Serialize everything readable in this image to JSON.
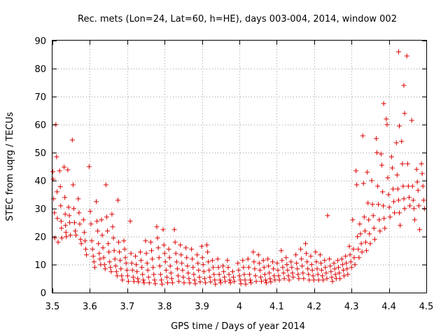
{
  "chart_data": {
    "type": "scatter",
    "title": "Rec. mets (Lon=24, Lat=60, h=HE), days 003-004, 2014, window 002",
    "xlabel": "GPS time / Days of year 2014",
    "ylabel": "STEC from uqrg / TECUs",
    "xlim": [
      3.5,
      4.5
    ],
    "ylim": [
      0,
      90
    ],
    "x_ticks": [
      3.5,
      3.6,
      3.7,
      3.8,
      3.9,
      4.0,
      4.1,
      4.2,
      4.3,
      4.4,
      4.5
    ],
    "x_tick_labels": [
      "3.5",
      "3.6",
      "3.7",
      "3.8",
      "3.9",
      "4",
      "4.1",
      "4.2",
      "4.3",
      "4.4",
      "4.5"
    ],
    "y_ticks": [
      0,
      10,
      20,
      30,
      40,
      50,
      60,
      70,
      80,
      90
    ],
    "y_tick_labels": [
      "0",
      "10",
      "20",
      "30",
      "40",
      "50",
      "60",
      "70",
      "80",
      "90"
    ],
    "grid": true,
    "marker": "plus",
    "marker_color": "#dd0000",
    "points": [
      [
        3.501,
        43.2
      ],
      [
        3.502,
        40.5
      ],
      [
        3.503,
        33.5
      ],
      [
        3.505,
        28.5
      ],
      [
        3.506,
        19.5
      ],
      [
        3.509,
        60.0
      ],
      [
        3.511,
        48.5
      ],
      [
        3.512,
        36.0
      ],
      [
        3.513,
        26.5
      ],
      [
        3.515,
        18.0
      ],
      [
        3.519,
        43.5
      ],
      [
        3.521,
        37.8
      ],
      [
        3.522,
        31.0
      ],
      [
        3.523,
        25.5
      ],
      [
        3.524,
        23.0
      ],
      [
        3.525,
        19.5
      ],
      [
        3.531,
        44.8
      ],
      [
        3.533,
        34.0
      ],
      [
        3.534,
        28.0
      ],
      [
        3.535,
        24.0
      ],
      [
        3.536,
        21.5
      ],
      [
        3.537,
        20.0
      ],
      [
        3.541,
        43.8
      ],
      [
        3.543,
        30.5
      ],
      [
        3.545,
        27.5
      ],
      [
        3.546,
        25.0
      ],
      [
        3.548,
        20.5
      ],
      [
        3.553,
        54.5
      ],
      [
        3.555,
        38.5
      ],
      [
        3.557,
        30.0
      ],
      [
        3.559,
        25.0
      ],
      [
        3.561,
        22.0
      ],
      [
        3.563,
        20.5
      ],
      [
        3.569,
        33.5
      ],
      [
        3.571,
        28.5
      ],
      [
        3.573,
        24.5
      ],
      [
        3.575,
        19.0
      ],
      [
        3.577,
        17.5
      ],
      [
        3.583,
        26.0
      ],
      [
        3.585,
        21.5
      ],
      [
        3.587,
        18.5
      ],
      [
        3.589,
        15.5
      ],
      [
        3.591,
        13.5
      ],
      [
        3.598,
        45.0
      ],
      [
        3.601,
        29.0
      ],
      [
        3.603,
        24.5
      ],
      [
        3.605,
        18.5
      ],
      [
        3.607,
        15.5
      ],
      [
        3.609,
        13.0
      ],
      [
        3.611,
        11.0
      ],
      [
        3.613,
        9.0
      ],
      [
        3.617,
        32.5
      ],
      [
        3.619,
        25.5
      ],
      [
        3.621,
        22.0
      ],
      [
        3.623,
        17.5
      ],
      [
        3.625,
        14.0
      ],
      [
        3.627,
        12.0
      ],
      [
        3.629,
        10.0
      ],
      [
        3.631,
        26.0
      ],
      [
        3.633,
        20.5
      ],
      [
        3.635,
        16.0
      ],
      [
        3.637,
        12.5
      ],
      [
        3.639,
        10.0
      ],
      [
        3.641,
        8.5
      ],
      [
        3.643,
        38.5
      ],
      [
        3.645,
        27.0
      ],
      [
        3.647,
        22.0
      ],
      [
        3.649,
        17.5
      ],
      [
        3.651,
        14.5
      ],
      [
        3.653,
        11.0
      ],
      [
        3.655,
        9.0
      ],
      [
        3.657,
        7.5
      ],
      [
        3.659,
        28.0
      ],
      [
        3.661,
        23.5
      ],
      [
        3.663,
        19.5
      ],
      [
        3.665,
        15.0
      ],
      [
        3.667,
        12.0
      ],
      [
        3.669,
        9.5
      ],
      [
        3.671,
        7.5
      ],
      [
        3.673,
        6.0
      ],
      [
        3.675,
        33.0
      ],
      [
        3.677,
        18.0
      ],
      [
        3.679,
        14.5
      ],
      [
        3.681,
        11.5
      ],
      [
        3.683,
        8.5
      ],
      [
        3.685,
        6.0
      ],
      [
        3.687,
        4.5
      ],
      [
        3.691,
        18.5
      ],
      [
        3.693,
        15.5
      ],
      [
        3.695,
        12.5
      ],
      [
        3.697,
        10.5
      ],
      [
        3.699,
        8.0
      ],
      [
        3.701,
        6.0
      ],
      [
        3.703,
        4.0
      ],
      [
        3.708,
        25.5
      ],
      [
        3.71,
        14.0
      ],
      [
        3.712,
        10.5
      ],
      [
        3.714,
        8.0
      ],
      [
        3.716,
        5.5
      ],
      [
        3.718,
        4.0
      ],
      [
        3.722,
        13.0
      ],
      [
        3.724,
        10.0
      ],
      [
        3.726,
        7.5
      ],
      [
        3.728,
        5.0
      ],
      [
        3.73,
        3.8
      ],
      [
        3.735,
        14.5
      ],
      [
        3.737,
        11.5
      ],
      [
        3.739,
        9.0
      ],
      [
        3.741,
        6.5
      ],
      [
        3.743,
        4.5
      ],
      [
        3.745,
        3.5
      ],
      [
        3.749,
        18.5
      ],
      [
        3.751,
        14.0
      ],
      [
        3.753,
        10.5
      ],
      [
        3.755,
        8.0
      ],
      [
        3.757,
        5.5
      ],
      [
        3.759,
        3.5
      ],
      [
        3.763,
        18.0
      ],
      [
        3.765,
        15.0
      ],
      [
        3.767,
        12.0
      ],
      [
        3.769,
        9.0
      ],
      [
        3.771,
        6.5
      ],
      [
        3.773,
        4.5
      ],
      [
        3.775,
        3.2
      ],
      [
        3.779,
        23.5
      ],
      [
        3.781,
        19.5
      ],
      [
        3.783,
        16.0
      ],
      [
        3.785,
        12.5
      ],
      [
        3.787,
        9.5
      ],
      [
        3.789,
        6.5
      ],
      [
        3.791,
        4.5
      ],
      [
        3.793,
        3.0
      ],
      [
        3.796,
        22.5
      ],
      [
        3.798,
        17.0
      ],
      [
        3.8,
        14.0
      ],
      [
        3.802,
        11.0
      ],
      [
        3.804,
        8.0
      ],
      [
        3.806,
        5.5
      ],
      [
        3.808,
        3.5
      ],
      [
        3.811,
        15.5
      ],
      [
        3.813,
        12.5
      ],
      [
        3.815,
        9.5
      ],
      [
        3.817,
        7.0
      ],
      [
        3.819,
        5.0
      ],
      [
        3.821,
        3.5
      ],
      [
        3.826,
        22.5
      ],
      [
        3.828,
        18.0
      ],
      [
        3.83,
        14.0
      ],
      [
        3.832,
        11.0
      ],
      [
        3.834,
        8.5
      ],
      [
        3.836,
        6.0
      ],
      [
        3.838,
        4.0
      ],
      [
        3.842,
        17.0
      ],
      [
        3.844,
        13.5
      ],
      [
        3.846,
        10.5
      ],
      [
        3.848,
        8.0
      ],
      [
        3.85,
        5.5
      ],
      [
        3.852,
        3.5
      ],
      [
        3.857,
        16.0
      ],
      [
        3.859,
        12.5
      ],
      [
        3.861,
        9.5
      ],
      [
        3.863,
        7.0
      ],
      [
        3.865,
        5.0
      ],
      [
        3.867,
        3.5
      ],
      [
        3.872,
        15.5
      ],
      [
        3.874,
        12.0
      ],
      [
        3.876,
        9.0
      ],
      [
        3.878,
        6.5
      ],
      [
        3.88,
        4.5
      ],
      [
        3.882,
        3.2
      ],
      [
        3.887,
        13.5
      ],
      [
        3.889,
        10.5
      ],
      [
        3.891,
        8.0
      ],
      [
        3.893,
        5.5
      ],
      [
        3.895,
        3.8
      ],
      [
        3.899,
        16.5
      ],
      [
        3.901,
        12.5
      ],
      [
        3.903,
        10.0
      ],
      [
        3.905,
        7.5
      ],
      [
        3.907,
        5.0
      ],
      [
        3.909,
        3.5
      ],
      [
        3.913,
        17.0
      ],
      [
        3.915,
        14.5
      ],
      [
        3.917,
        11.0
      ],
      [
        3.919,
        8.0
      ],
      [
        3.921,
        5.5
      ],
      [
        3.923,
        3.8
      ],
      [
        3.928,
        11.5
      ],
      [
        3.93,
        9.0
      ],
      [
        3.932,
        6.5
      ],
      [
        3.934,
        4.5
      ],
      [
        3.936,
        3.0
      ],
      [
        3.942,
        12.0
      ],
      [
        3.944,
        9.0
      ],
      [
        3.946,
        6.5
      ],
      [
        3.948,
        4.5
      ],
      [
        3.95,
        3.5
      ],
      [
        3.956,
        9.5
      ],
      [
        3.958,
        7.5
      ],
      [
        3.96,
        5.5
      ],
      [
        3.962,
        4.0
      ],
      [
        3.968,
        11.5
      ],
      [
        3.97,
        9.0
      ],
      [
        3.972,
        6.5
      ],
      [
        3.974,
        4.5
      ],
      [
        3.976,
        3.5
      ],
      [
        3.982,
        7.5
      ],
      [
        3.984,
        5.5
      ],
      [
        3.986,
        4.0
      ],
      [
        3.996,
        10.5
      ],
      [
        3.998,
        8.0
      ],
      [
        4.0,
        6.0
      ],
      [
        4.002,
        4.5
      ],
      [
        4.004,
        3.2
      ],
      [
        4.009,
        11.5
      ],
      [
        4.011,
        9.0
      ],
      [
        4.013,
        6.5
      ],
      [
        4.015,
        4.5
      ],
      [
        4.017,
        3.0
      ],
      [
        4.023,
        12.0
      ],
      [
        4.025,
        9.0
      ],
      [
        4.027,
        6.5
      ],
      [
        4.029,
        4.5
      ],
      [
        4.031,
        3.5
      ],
      [
        4.037,
        14.5
      ],
      [
        4.039,
        11.0
      ],
      [
        4.041,
        8.5
      ],
      [
        4.043,
        6.0
      ],
      [
        4.045,
        4.0
      ],
      [
        4.051,
        13.5
      ],
      [
        4.053,
        10.5
      ],
      [
        4.055,
        8.0
      ],
      [
        4.057,
        5.5
      ],
      [
        4.059,
        4.0
      ],
      [
        4.064,
        11.5
      ],
      [
        4.066,
        9.0
      ],
      [
        4.068,
        6.5
      ],
      [
        4.07,
        4.5
      ],
      [
        4.072,
        3.5
      ],
      [
        4.076,
        12.0
      ],
      [
        4.078,
        9.5
      ],
      [
        4.08,
        7.0
      ],
      [
        4.082,
        5.0
      ],
      [
        4.084,
        3.8
      ],
      [
        4.089,
        11.0
      ],
      [
        4.091,
        8.5
      ],
      [
        4.093,
        6.0
      ],
      [
        4.095,
        4.5
      ],
      [
        4.101,
        10.5
      ],
      [
        4.103,
        8.0
      ],
      [
        4.105,
        6.0
      ],
      [
        4.107,
        4.5
      ],
      [
        4.112,
        15.0
      ],
      [
        4.114,
        11.5
      ],
      [
        4.116,
        9.0
      ],
      [
        4.118,
        7.0
      ],
      [
        4.12,
        5.0
      ],
      [
        4.125,
        12.5
      ],
      [
        4.127,
        10.0
      ],
      [
        4.129,
        8.0
      ],
      [
        4.131,
        6.0
      ],
      [
        4.133,
        4.5
      ],
      [
        4.138,
        11.0
      ],
      [
        4.14,
        9.0
      ],
      [
        4.142,
        7.0
      ],
      [
        4.144,
        5.5
      ],
      [
        4.151,
        13.5
      ],
      [
        4.153,
        10.5
      ],
      [
        4.155,
        8.5
      ],
      [
        4.157,
        6.5
      ],
      [
        4.159,
        5.0
      ],
      [
        4.164,
        15.5
      ],
      [
        4.166,
        12.0
      ],
      [
        4.168,
        9.5
      ],
      [
        4.17,
        7.0
      ],
      [
        4.172,
        5.0
      ],
      [
        4.177,
        17.5
      ],
      [
        4.179,
        14.0
      ],
      [
        4.181,
        11.0
      ],
      [
        4.183,
        8.5
      ],
      [
        4.185,
        6.5
      ],
      [
        4.187,
        4.5
      ],
      [
        4.191,
        13.0
      ],
      [
        4.193,
        10.0
      ],
      [
        4.195,
        8.0
      ],
      [
        4.197,
        6.0
      ],
      [
        4.199,
        4.5
      ],
      [
        4.204,
        14.5
      ],
      [
        4.206,
        11.0
      ],
      [
        4.208,
        8.5
      ],
      [
        4.21,
        6.5
      ],
      [
        4.212,
        4.5
      ],
      [
        4.216,
        13.5
      ],
      [
        4.218,
        10.5
      ],
      [
        4.22,
        8.0
      ],
      [
        4.222,
        6.0
      ],
      [
        4.224,
        4.5
      ],
      [
        4.228,
        11.5
      ],
      [
        4.23,
        9.0
      ],
      [
        4.232,
        7.0
      ],
      [
        4.234,
        5.0
      ],
      [
        4.236,
        27.5
      ],
      [
        4.241,
        12.0
      ],
      [
        4.243,
        9.5
      ],
      [
        4.245,
        7.5
      ],
      [
        4.247,
        5.5
      ],
      [
        4.249,
        4.0
      ],
      [
        4.253,
        10.5
      ],
      [
        4.255,
        8.5
      ],
      [
        4.257,
        6.5
      ],
      [
        4.259,
        5.0
      ],
      [
        4.263,
        11.5
      ],
      [
        4.265,
        9.0
      ],
      [
        4.267,
        7.0
      ],
      [
        4.269,
        5.0
      ],
      [
        4.274,
        12.0
      ],
      [
        4.276,
        10.0
      ],
      [
        4.278,
        8.0
      ],
      [
        4.28,
        6.0
      ],
      [
        4.284,
        13.0
      ],
      [
        4.286,
        10.5
      ],
      [
        4.288,
        8.5
      ],
      [
        4.29,
        6.5
      ],
      [
        4.294,
        16.5
      ],
      [
        4.296,
        13.5
      ],
      [
        4.298,
        11.0
      ],
      [
        4.3,
        9.0
      ],
      [
        4.303,
        26.0
      ],
      [
        4.305,
        15.5
      ],
      [
        4.307,
        12.5
      ],
      [
        4.309,
        10.0
      ],
      [
        4.312,
        43.5
      ],
      [
        4.314,
        38.5
      ],
      [
        4.316,
        20.0
      ],
      [
        4.318,
        15.5
      ],
      [
        4.32,
        12.5
      ],
      [
        4.322,
        24.5
      ],
      [
        4.324,
        21.0
      ],
      [
        4.326,
        17.5
      ],
      [
        4.328,
        14.5
      ],
      [
        4.33,
        56.0
      ],
      [
        4.332,
        39.0
      ],
      [
        4.334,
        27.0
      ],
      [
        4.336,
        22.0
      ],
      [
        4.338,
        18.0
      ],
      [
        4.34,
        15.0
      ],
      [
        4.342,
        43.0
      ],
      [
        4.344,
        32.0
      ],
      [
        4.346,
        26.0
      ],
      [
        4.348,
        21.0
      ],
      [
        4.35,
        17.5
      ],
      [
        4.354,
        40.0
      ],
      [
        4.356,
        31.5
      ],
      [
        4.358,
        27.5
      ],
      [
        4.36,
        23.0
      ],
      [
        4.362,
        19.0
      ],
      [
        4.366,
        55.0
      ],
      [
        4.368,
        50.0
      ],
      [
        4.37,
        38.0
      ],
      [
        4.372,
        31.5
      ],
      [
        4.374,
        26.0
      ],
      [
        4.376,
        22.0
      ],
      [
        4.379,
        49.5
      ],
      [
        4.381,
        45.5
      ],
      [
        4.383,
        36.0
      ],
      [
        4.385,
        31.0
      ],
      [
        4.387,
        26.5
      ],
      [
        4.389,
        23.0
      ],
      [
        4.386,
        67.5
      ],
      [
        4.393,
        62.0
      ],
      [
        4.395,
        60.0
      ],
      [
        4.397,
        41.0
      ],
      [
        4.399,
        35.0
      ],
      [
        4.401,
        30.5
      ],
      [
        4.403,
        27.0
      ],
      [
        4.407,
        48.5
      ],
      [
        4.409,
        44.5
      ],
      [
        4.411,
        37.0
      ],
      [
        4.413,
        32.5
      ],
      [
        4.415,
        28.5
      ],
      [
        4.42,
        53.5
      ],
      [
        4.422,
        42.0
      ],
      [
        4.424,
        37.0
      ],
      [
        4.426,
        33.0
      ],
      [
        4.428,
        28.5
      ],
      [
        4.43,
        24.0
      ],
      [
        4.426,
        86.0
      ],
      [
        4.428,
        59.5
      ],
      [
        4.434,
        54.0
      ],
      [
        4.436,
        46.0
      ],
      [
        4.438,
        38.0
      ],
      [
        4.44,
        33.5
      ],
      [
        4.442,
        30.0
      ],
      [
        4.44,
        74.0
      ],
      [
        4.442,
        64.0
      ],
      [
        4.448,
        84.5
      ],
      [
        4.45,
        46.0
      ],
      [
        4.452,
        38.0
      ],
      [
        4.454,
        34.0
      ],
      [
        4.456,
        31.0
      ],
      [
        4.461,
        61.5
      ],
      [
        4.463,
        38.0
      ],
      [
        4.465,
        33.0
      ],
      [
        4.467,
        30.0
      ],
      [
        4.469,
        26.0
      ],
      [
        4.474,
        44.0
      ],
      [
        4.476,
        39.5
      ],
      [
        4.478,
        36.5
      ],
      [
        4.48,
        31.0
      ],
      [
        4.482,
        22.5
      ],
      [
        4.487,
        46.0
      ],
      [
        4.489,
        42.5
      ],
      [
        4.491,
        38.0
      ],
      [
        4.493,
        33.0
      ],
      [
        4.495,
        30.0
      ]
    ]
  }
}
